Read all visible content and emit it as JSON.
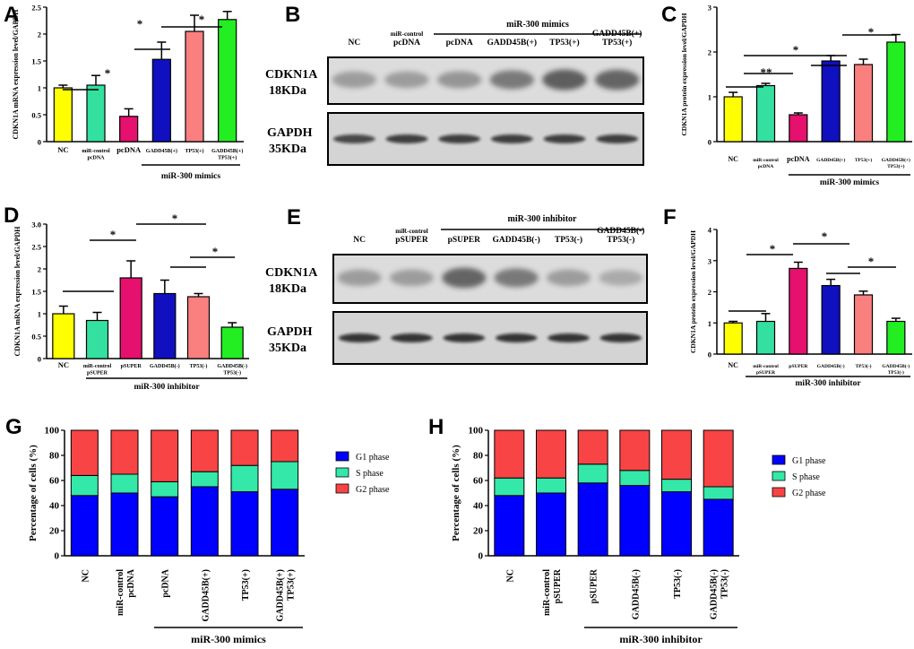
{
  "panels": {
    "A": "A",
    "B": "B",
    "C": "C",
    "D": "D",
    "E": "E",
    "F": "F",
    "G": "G",
    "H": "H"
  },
  "chart_data": [
    {
      "id": "A",
      "type": "bar",
      "ylabel": "CDKN1A mRNA expression level/GAPDH",
      "categories": [
        [
          "NC"
        ],
        [
          "miR-control",
          "pcDNA"
        ],
        [
          "pcDNA"
        ],
        [
          "GADD45B(+)"
        ],
        [
          "TP53(+)"
        ],
        [
          "GADD45B(+)",
          "TP53(+)"
        ]
      ],
      "values": [
        1.0,
        1.05,
        0.47,
        1.53,
        2.05,
        2.27
      ],
      "errors": [
        0.05,
        0.18,
        0.14,
        0.32,
        0.3,
        0.15
      ],
      "colors": [
        "#ffff00",
        "#33e0a0",
        "#e6106e",
        "#1010c0",
        "#fa7f7f",
        "#22ee22"
      ],
      "ylim": [
        0,
        2.5
      ],
      "yticks": [
        "0",
        "0.5",
        "1",
        "1.5",
        "2",
        "2.5"
      ],
      "group_label": "miR-300 mimics",
      "significance": [
        "*",
        "*",
        "*"
      ]
    },
    {
      "id": "C",
      "type": "bar",
      "ylabel": "CDKN1A protein expression level/GAPDH",
      "categories": [
        [
          "NC"
        ],
        [
          "miR-control",
          "pcDNA"
        ],
        [
          "pcDNA"
        ],
        [
          "GADD45B(+)"
        ],
        [
          "TP53(+)"
        ],
        [
          "GADD45B(+)",
          "TP53(+)"
        ]
      ],
      "values": [
        1.0,
        1.25,
        0.6,
        1.8,
        1.72,
        2.22
      ],
      "errors": [
        0.1,
        0.05,
        0.04,
        0.12,
        0.12,
        0.17
      ],
      "colors": [
        "#ffff00",
        "#33e0a0",
        "#e6106e",
        "#1010c0",
        "#fa7f7f",
        "#22ee22"
      ],
      "ylim": [
        0,
        3
      ],
      "yticks": [
        "0",
        "1",
        "2",
        "3"
      ],
      "group_label": "miR-300 mimics",
      "significance": [
        "**",
        "*",
        "*"
      ]
    },
    {
      "id": "D",
      "type": "bar",
      "ylabel": "CDKN1A mRNA expression level/GAPDH",
      "categories": [
        [
          "NC"
        ],
        [
          "miR-control",
          "pSUPER"
        ],
        [
          "pSUPER"
        ],
        [
          "GADD45B(-)"
        ],
        [
          "TP53(-)"
        ],
        [
          "GADD45B(-)",
          "TP53(-)"
        ]
      ],
      "values": [
        1.0,
        0.85,
        1.8,
        1.45,
        1.38,
        0.7
      ],
      "errors": [
        0.17,
        0.18,
        0.38,
        0.3,
        0.07,
        0.1
      ],
      "colors": [
        "#ffff00",
        "#33e0a0",
        "#e6106e",
        "#1010c0",
        "#fa7f7f",
        "#22ee22"
      ],
      "ylim": [
        0,
        3.0
      ],
      "yticks": [
        "0",
        "0.5",
        "1",
        "1.5",
        "2",
        "2.5",
        "3.0"
      ],
      "group_label": "miR-300 inhibitor",
      "significance": [
        "*",
        "*",
        "*"
      ]
    },
    {
      "id": "F",
      "type": "bar",
      "ylabel": "CDKN1A protein expression level/GAPDH",
      "categories": [
        [
          "NC"
        ],
        [
          "miR-control",
          "pSUPER"
        ],
        [
          "pSUPER"
        ],
        [
          "GADD45B(-)"
        ],
        [
          "TP53(-)"
        ],
        [
          "GADD45B(-)",
          "TP53(-)"
        ]
      ],
      "values": [
        1.0,
        1.05,
        2.75,
        2.2,
        1.9,
        1.05
      ],
      "errors": [
        0.05,
        0.25,
        0.2,
        0.2,
        0.12,
        0.1
      ],
      "colors": [
        "#ffff00",
        "#33e0a0",
        "#e6106e",
        "#1010c0",
        "#fa7f7f",
        "#22ee22"
      ],
      "ylim": [
        0,
        4
      ],
      "yticks": [
        "0",
        "1",
        "2",
        "3",
        "4"
      ],
      "group_label": "miR-300 inhibitor",
      "significance": [
        "*",
        "*",
        "*"
      ]
    },
    {
      "id": "G",
      "type": "bar",
      "stacked": true,
      "ylabel": "Percentage of cells (%)",
      "categories": [
        [
          "NC"
        ],
        [
          "miR-control",
          "pcDNA"
        ],
        [
          "pcDNA"
        ],
        [
          "GADD45B(+)"
        ],
        [
          "TP53(+)"
        ],
        [
          "GADD45B(+)",
          "TP53(+)"
        ]
      ],
      "series": [
        {
          "name": "G1 phase",
          "color": "#0000ff",
          "values": [
            48,
            50,
            47,
            55,
            51,
            53
          ]
        },
        {
          "name": "S phase",
          "color": "#33e8a8",
          "values": [
            16,
            15,
            12,
            12,
            21,
            22
          ]
        },
        {
          "name": "G2 phase",
          "color": "#f84444",
          "values": [
            36,
            35,
            41,
            33,
            28,
            25
          ]
        }
      ],
      "ylim": [
        0,
        100
      ],
      "yticks": [
        "0",
        "20",
        "40",
        "60",
        "80",
        "100"
      ],
      "group_label": "miR-300 mimics"
    },
    {
      "id": "H",
      "type": "bar",
      "stacked": true,
      "ylabel": "Percentage of cells (%)",
      "categories": [
        [
          "NC"
        ],
        [
          "miR-control",
          "pSUPER"
        ],
        [
          "pSUPER"
        ],
        [
          "GADD45B(-)"
        ],
        [
          "TP53(-)"
        ],
        [
          "GADD45B(-)",
          "TP53(-)"
        ]
      ],
      "series": [
        {
          "name": "G1 phase",
          "color": "#0000ff",
          "values": [
            48,
            50,
            58,
            56,
            51,
            45
          ]
        },
        {
          "name": "S phase",
          "color": "#33e8a8",
          "values": [
            14,
            12,
            15,
            12,
            10,
            10
          ]
        },
        {
          "name": "G2 phase",
          "color": "#f84444",
          "values": [
            38,
            38,
            27,
            32,
            39,
            45
          ]
        }
      ],
      "ylim": [
        0,
        100
      ],
      "yticks": [
        "0",
        "20",
        "40",
        "60",
        "80",
        "100"
      ],
      "group_label": "miR-300 inhibitor"
    }
  ],
  "blots": {
    "B": {
      "header": "miR-300 mimics",
      "lanes": [
        [
          "NC"
        ],
        [
          "miR-control",
          "pcDNA"
        ],
        [
          "pcDNA"
        ],
        [
          "GADD45B(+)"
        ],
        [
          "TP53(+)"
        ],
        [
          "GADD45B(+)",
          "TP53(+)"
        ]
      ],
      "target_name": "CDKN1A",
      "target_size": "18KDa",
      "ref_name": "GAPDH",
      "ref_size": "35KDa"
    },
    "E": {
      "header": "miR-300 inhibitor",
      "lanes": [
        [
          "NC"
        ],
        [
          "miR-control",
          "pSUPER"
        ],
        [
          "pSUPER"
        ],
        [
          "GADD45B(-)"
        ],
        [
          "TP53(-)"
        ],
        [
          "GADD45B(-)",
          "TP53(-)"
        ]
      ],
      "target_name": "CDKN1A",
      "target_size": "18KDa",
      "ref_name": "GAPDH",
      "ref_size": "35KDa"
    }
  }
}
